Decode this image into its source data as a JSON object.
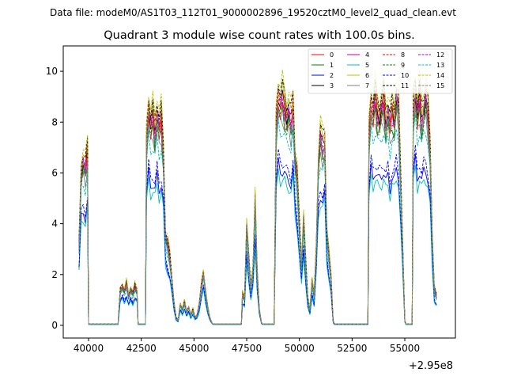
{
  "figure": {
    "suptitle": "Data file: modeM0/AS1T03_112T01_9000002896_19520cztM0_level2_quad_clean.evt"
  },
  "chart_data": {
    "type": "line",
    "title": "Quadrant 3 module wise count rates with 100.0s bins.",
    "xlabel": "",
    "ylabel": "",
    "x_offset_label": "+2.95e8",
    "xlim": [
      38800,
      57400
    ],
    "ylim": [
      -0.5,
      11.0
    ],
    "xticks": [
      40000,
      42500,
      45000,
      47500,
      50000,
      52500,
      55000
    ],
    "xtick_labels": [
      "40000",
      "42500",
      "45000",
      "47500",
      "50000",
      "52500",
      "55000"
    ],
    "yticks": [
      0,
      2,
      4,
      6,
      8,
      10
    ],
    "ytick_labels": [
      "0",
      "2",
      "4",
      "6",
      "8",
      "10"
    ],
    "grid": false,
    "legend": {
      "placement": "top-right",
      "columns": 4
    },
    "segments": [
      {
        "x": [
          39550,
          39650,
          39750,
          39850,
          39950
        ],
        "base": [
          3.1,
          5.8,
          6.2,
          5.9,
          6.6
        ]
      },
      {
        "x": [
          40000,
          40500,
          41000,
          41400
        ],
        "base": [
          0.05,
          0.05,
          0.05,
          0.05
        ]
      },
      {
        "x": [
          41500,
          41600,
          41700,
          41800,
          41900,
          42000,
          42100,
          42200,
          42300
        ],
        "base": [
          1.3,
          1.5,
          1.3,
          1.6,
          1.1,
          1.4,
          1.2,
          1.5,
          1.3
        ]
      },
      {
        "x": [
          42350,
          42500,
          42700
        ],
        "base": [
          0.05,
          0.05,
          0.05
        ]
      },
      {
        "x": [
          42750,
          42850,
          42950,
          43050,
          43150,
          43250,
          43350,
          43450,
          43550,
          43650,
          43750,
          43850,
          43950,
          44050,
          44150
        ],
        "base": [
          7.0,
          8.2,
          7.6,
          7.9,
          7.3,
          8.1,
          7.5,
          7.8,
          6.5,
          3.4,
          3.1,
          2.6,
          1.8,
          0.9,
          0.3
        ]
      },
      {
        "x": [
          44250,
          44350,
          44450,
          44550,
          44650,
          44750,
          44850,
          44950,
          45050,
          45150,
          45250,
          45350,
          45450,
          45550,
          45650,
          45750,
          45850
        ],
        "base": [
          0.2,
          0.8,
          0.6,
          0.9,
          0.5,
          0.7,
          0.4,
          0.6,
          0.3,
          0.4,
          0.8,
          1.5,
          2.0,
          1.3,
          0.7,
          0.3,
          0.1
        ]
      },
      {
        "x": [
          45900,
          46500,
          47000,
          47250
        ],
        "base": [
          0.05,
          0.05,
          0.05,
          0.05
        ]
      },
      {
        "x": [
          47300,
          47400,
          47500,
          47600,
          47700,
          47800,
          47900,
          48000,
          48100,
          48200
        ],
        "base": [
          1.2,
          1.0,
          3.8,
          2.5,
          1.4,
          2.2,
          4.8,
          2.0,
          0.6,
          0.1
        ]
      },
      {
        "x": [
          48250,
          48500,
          48800
        ],
        "base": [
          0.05,
          0.05,
          0.05
        ]
      },
      {
        "x": [
          48900,
          49000,
          49100,
          49200,
          49300,
          49400,
          49500,
          49600,
          49700,
          49800,
          49900,
          50000,
          50100,
          50200,
          50300,
          50400,
          50500,
          50600,
          50700,
          50800,
          50900,
          51000,
          51100,
          51200,
          51300,
          51400,
          51500,
          51600
        ],
        "base": [
          7.6,
          8.7,
          8.4,
          8.6,
          8.2,
          7.9,
          8.1,
          7.7,
          8.3,
          6.3,
          5.6,
          3.8,
          2.3,
          4.1,
          2.4,
          1.0,
          0.6,
          1.7,
          1.1,
          2.9,
          6.2,
          7.2,
          6.8,
          7.0,
          3.6,
          2.7,
          1.8,
          0.2
        ]
      },
      {
        "x": [
          51650,
          52000,
          52500,
          53000,
          53250
        ],
        "base": [
          0.05,
          0.05,
          0.05,
          0.05,
          0.05
        ]
      },
      {
        "x": [
          53300,
          53400,
          53500,
          53600,
          53700,
          53800,
          53900,
          54000,
          54100,
          54200,
          54300,
          54400,
          54500,
          54600,
          54700,
          54800,
          54900,
          55000
        ],
        "base": [
          7.2,
          8.4,
          8.1,
          8.6,
          8.0,
          7.9,
          8.3,
          8.5,
          7.7,
          8.2,
          7.6,
          8.0,
          7.8,
          8.7,
          8.3,
          5.6,
          3.1,
          0.2
        ]
      },
      {
        "x": [
          55050,
          55200,
          55350
        ],
        "base": [
          0.05,
          0.05,
          0.05
        ]
      },
      {
        "x": [
          55400,
          55500,
          55600,
          55700,
          55800,
          55900,
          56000,
          56100,
          56200,
          56300,
          56400,
          56500
        ],
        "base": [
          8.2,
          8.9,
          8.0,
          8.6,
          7.8,
          8.3,
          8.6,
          8.0,
          6.7,
          3.4,
          1.4,
          1.1
        ]
      }
    ],
    "series": [
      {
        "name": "0",
        "scale": 1.0,
        "color": "#ff0000",
        "dash": "solid"
      },
      {
        "name": "1",
        "scale": 0.98,
        "color": "#008000",
        "dash": "solid"
      },
      {
        "name": "2",
        "scale": 0.72,
        "color": "#0000ff",
        "dash": "solid"
      },
      {
        "name": "3",
        "scale": 1.04,
        "color": "#000000",
        "dash": "solid"
      },
      {
        "name": "4",
        "scale": 1.02,
        "color": "#bf00bf",
        "dash": "solid"
      },
      {
        "name": "5",
        "scale": 0.68,
        "color": "#00bfbf",
        "dash": "solid"
      },
      {
        "name": "6",
        "scale": 1.08,
        "color": "#bfbf00",
        "dash": "solid"
      },
      {
        "name": "7",
        "scale": 0.95,
        "color": "#808080",
        "dash": "solid"
      },
      {
        "name": "8",
        "scale": 1.06,
        "color": "#ff0000",
        "dash": "dashed"
      },
      {
        "name": "9",
        "scale": 0.97,
        "color": "#008000",
        "dash": "dashed"
      },
      {
        "name": "10",
        "scale": 0.76,
        "color": "#0000ff",
        "dash": "dashed"
      },
      {
        "name": "11",
        "scale": 1.1,
        "color": "#000000",
        "dash": "dashed"
      },
      {
        "name": "12",
        "scale": 1.03,
        "color": "#bf00bf",
        "dash": "dashed"
      },
      {
        "name": "13",
        "scale": 0.9,
        "color": "#00bfbf",
        "dash": "dashed"
      },
      {
        "name": "14",
        "scale": 1.13,
        "color": "#bfbf00",
        "dash": "dashed"
      },
      {
        "name": "15",
        "scale": 1.01,
        "color": "#808080",
        "dash": "dashed"
      }
    ]
  }
}
